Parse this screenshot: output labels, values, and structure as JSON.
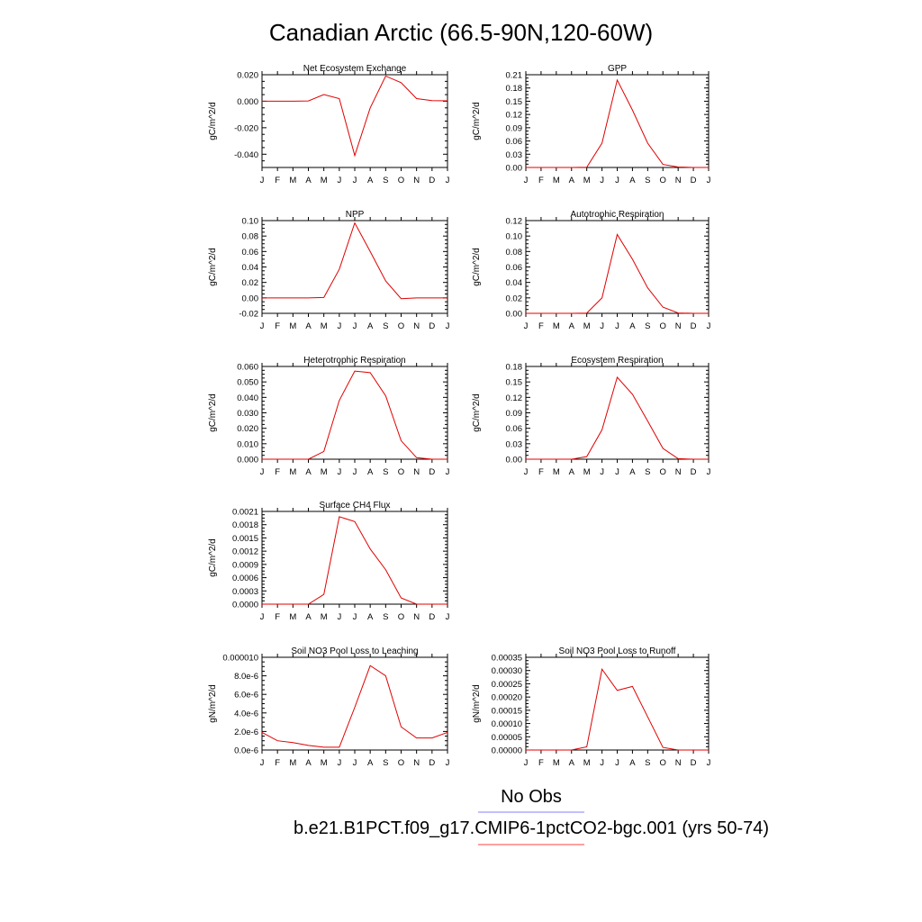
{
  "title": "Canadian Arctic (66.5-90N,120-60W)",
  "legend": [
    {
      "label": "No Obs",
      "color": "#8080ff"
    },
    {
      "label": "b.e21.B1PCT.f09_g17.CMIP6-1pctCO2-bgc.001 (yrs 50-74)",
      "color": "#ff4040"
    }
  ],
  "months": [
    "J",
    "F",
    "M",
    "A",
    "M",
    "J",
    "J",
    "A",
    "S",
    "O",
    "N",
    "D",
    "J"
  ],
  "line_color": "#e00000",
  "chart_data": [
    {
      "type": "line",
      "title": "Net Ecosystem Exchange",
      "ylabel": "gC/m^2/d",
      "ylim": [
        -0.05,
        0.02
      ],
      "ticks": [
        -0.04,
        -0.02,
        0.0,
        0.02
      ],
      "tick_labels": [
        "-0.040",
        "-0.020",
        "0.000",
        "0.020"
      ],
      "values": [
        0.0,
        0.0,
        0.0,
        0.0002,
        0.005,
        0.002,
        -0.041,
        -0.005,
        0.019,
        0.014,
        0.002,
        0.0005,
        0.0003
      ]
    },
    {
      "type": "line",
      "title": "GPP",
      "ylabel": "gC/m^2/d",
      "ylim": [
        0,
        0.21
      ],
      "ticks": [
        0,
        0.03,
        0.06,
        0.09,
        0.12,
        0.15,
        0.18,
        0.21
      ],
      "tick_labels": [
        "0.00",
        "0.03",
        "0.06",
        "0.09",
        "0.12",
        "0.15",
        "0.18",
        "0.21"
      ],
      "values": [
        0,
        0,
        0,
        0,
        0.0005,
        0.055,
        0.198,
        0.13,
        0.055,
        0.007,
        0.001,
        0,
        0
      ]
    },
    {
      "type": "line",
      "title": "NPP",
      "ylabel": "gC/m^2/d",
      "ylim": [
        -0.02,
        0.1
      ],
      "ticks": [
        -0.02,
        0.0,
        0.02,
        0.04,
        0.06,
        0.08,
        0.1
      ],
      "tick_labels": [
        "-0.02",
        "0.00",
        "0.02",
        "0.04",
        "0.06",
        "0.08",
        "0.10"
      ],
      "values": [
        0,
        0,
        0,
        0,
        0.0005,
        0.037,
        0.097,
        0.06,
        0.022,
        -0.001,
        0,
        0,
        0
      ]
    },
    {
      "type": "line",
      "title": "Autotrophic Respiration",
      "ylabel": "gC/m^2/d",
      "ylim": [
        0,
        0.12
      ],
      "ticks": [
        0,
        0.02,
        0.04,
        0.06,
        0.08,
        0.1,
        0.12
      ],
      "tick_labels": [
        "0.00",
        "0.02",
        "0.04",
        "0.06",
        "0.08",
        "0.10",
        "0.12"
      ],
      "values": [
        0,
        0,
        0,
        0,
        0.0003,
        0.02,
        0.102,
        0.07,
        0.033,
        0.008,
        0.0005,
        0,
        0
      ]
    },
    {
      "type": "line",
      "title": "Heterotrophic Respiration",
      "ylabel": "gC/m^2/d",
      "ylim": [
        0,
        0.06
      ],
      "ticks": [
        0,
        0.01,
        0.02,
        0.03,
        0.04,
        0.05,
        0.06
      ],
      "tick_labels": [
        "0.000",
        "0.010",
        "0.020",
        "0.030",
        "0.040",
        "0.050",
        "0.060"
      ],
      "values": [
        0,
        0,
        0,
        0,
        0.005,
        0.038,
        0.057,
        0.056,
        0.041,
        0.012,
        0.001,
        0,
        0
      ]
    },
    {
      "type": "line",
      "title": "Ecosystem Respiration",
      "ylabel": "gC/m^2/d",
      "ylim": [
        0,
        0.18
      ],
      "ticks": [
        0,
        0.03,
        0.06,
        0.09,
        0.12,
        0.15,
        0.18
      ],
      "tick_labels": [
        "0.00",
        "0.03",
        "0.06",
        "0.09",
        "0.12",
        "0.15",
        "0.18"
      ],
      "values": [
        0,
        0,
        0,
        0,
        0.005,
        0.057,
        0.159,
        0.126,
        0.074,
        0.021,
        0.001,
        0,
        0
      ]
    },
    {
      "type": "line",
      "title": "Surface CH4 Flux",
      "ylabel": "gC/m^2/d",
      "ylim": [
        0,
        0.0021
      ],
      "ticks": [
        0,
        0.0003,
        0.0006,
        0.0009,
        0.0012,
        0.0015,
        0.0018,
        0.0021
      ],
      "tick_labels": [
        "0.0000",
        "0.0003",
        "0.0006",
        "0.0009",
        "0.0012",
        "0.0015",
        "0.0018",
        "0.0021"
      ],
      "values": [
        0,
        0,
        0,
        0,
        0.00022,
        0.00198,
        0.00187,
        0.00125,
        0.00078,
        0.00014,
        0,
        0,
        0
      ]
    },
    {
      "type": "line",
      "title": "Soil NO3 Pool Loss to Leaching",
      "ylabel": "gN/m^2/d",
      "ylim": [
        0,
        1e-05
      ],
      "ticks": [
        0,
        2e-06,
        4e-06,
        6e-06,
        8e-06,
        1e-05
      ],
      "tick_labels": [
        "0.0e-6",
        "2.0e-6",
        "4.0e-6",
        "6.0e-6",
        "8.0e-6",
        "0.000010"
      ],
      "values": [
        1.9e-06,
        1e-06,
        8e-07,
        5e-07,
        3e-07,
        3e-07,
        4.6e-06,
        9.1e-06,
        8e-06,
        2.5e-06,
        1.3e-06,
        1.3e-06,
        1.9e-06
      ]
    },
    {
      "type": "line",
      "title": "Soil NO3 Pool Loss to Runoff",
      "ylabel": "gN/m^2/d",
      "ylim": [
        0,
        0.00035
      ],
      "ticks": [
        0,
        5e-05,
        0.0001,
        0.00015,
        0.0002,
        0.00025,
        0.0003,
        0.00035
      ],
      "tick_labels": [
        "0.00000",
        "0.00005",
        "0.00010",
        "0.00015",
        "0.00020",
        "0.00025",
        "0.00030",
        "0.00035"
      ],
      "values": [
        0,
        0,
        0,
        0,
        1.2e-05,
        0.000305,
        0.000225,
        0.00024,
        0.000125,
        1e-05,
        0,
        0,
        0
      ]
    }
  ]
}
